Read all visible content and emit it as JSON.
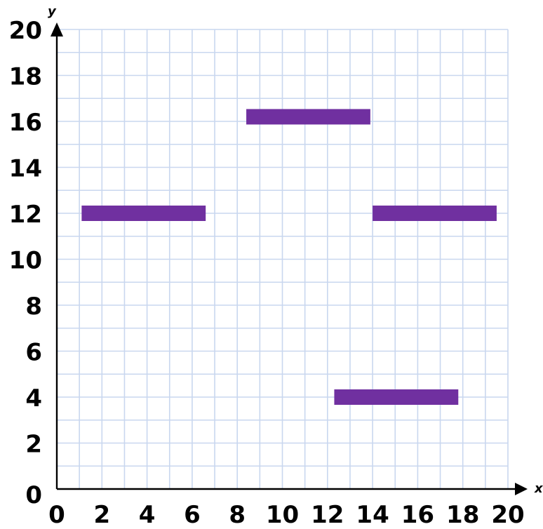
{
  "chart_data": {
    "type": "bar",
    "title": "",
    "xlabel": "x",
    "ylabel": "y",
    "xlim": [
      0,
      20
    ],
    "ylim": [
      0,
      20
    ],
    "x_ticks": [
      "0",
      "2",
      "4",
      "6",
      "8",
      "10",
      "12",
      "14",
      "16",
      "18",
      "20"
    ],
    "y_ticks": [
      "0",
      "2",
      "4",
      "6",
      "8",
      "10",
      "12",
      "14",
      "16",
      "18",
      "20"
    ],
    "grid": true,
    "bar_color": "#7030a0",
    "segments": [
      {
        "x_start": 1.1,
        "x_end": 6.6,
        "y": 12
      },
      {
        "x_start": 8.4,
        "x_end": 13.9,
        "y": 16.2
      },
      {
        "x_start": 14.0,
        "x_end": 19.5,
        "y": 12
      },
      {
        "x_start": 12.3,
        "x_end": 17.8,
        "y": 4
      }
    ]
  }
}
